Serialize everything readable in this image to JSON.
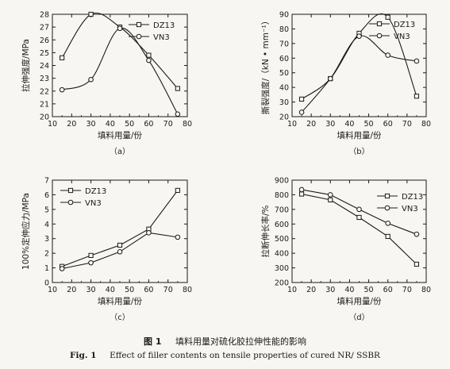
{
  "figure": {
    "caption_cn_label": "图 1",
    "caption_cn": "填料用量对硫化胶拉伸性能的影响",
    "caption_en_label": "Fig. 1",
    "caption_en": "Effect of filler contents on tensile properties of cured NR/ SSBR"
  },
  "chart_data": [
    {
      "type": "line",
      "panel_label": "（a）",
      "xlabel": "填料用量/份",
      "ylabel": "拉伸强度/MPa",
      "xlim": [
        10,
        80
      ],
      "ylim": [
        20,
        28
      ],
      "xticks": [
        10,
        20,
        30,
        40,
        50,
        60,
        70,
        80
      ],
      "yticks": [
        20,
        21,
        22,
        23,
        24,
        25,
        26,
        27,
        28
      ],
      "legend_position": "top-right",
      "grid": false,
      "series": [
        {
          "name": "DZ13",
          "marker": "square",
          "x": [
            15,
            30,
            45,
            60,
            75
          ],
          "y": [
            24.6,
            28.0,
            27.0,
            24.8,
            22.2
          ]
        },
        {
          "name": "VN3",
          "marker": "circle",
          "x": [
            15,
            30,
            45,
            60,
            75
          ],
          "y": [
            22.1,
            22.9,
            26.9,
            24.4,
            20.2
          ]
        }
      ]
    },
    {
      "type": "line",
      "panel_label": "（b）",
      "xlabel": "填料用量/份",
      "ylabel": "撕裂强度/（kN • mm⁻¹）",
      "xlim": [
        10,
        80
      ],
      "ylim": [
        20,
        90
      ],
      "xticks": [
        10,
        20,
        30,
        40,
        50,
        60,
        70,
        80
      ],
      "yticks": [
        20,
        30,
        40,
        50,
        60,
        70,
        80,
        90
      ],
      "legend_position": "top-right",
      "grid": false,
      "series": [
        {
          "name": "DZ13",
          "marker": "square",
          "x": [
            15,
            30,
            45,
            60,
            75
          ],
          "y": [
            32,
            46,
            77,
            88,
            34
          ]
        },
        {
          "name": "VN3",
          "marker": "circle",
          "x": [
            15,
            30,
            45,
            60,
            75
          ],
          "y": [
            23,
            46,
            75,
            62,
            58
          ]
        }
      ]
    },
    {
      "type": "line",
      "panel_label": "（c）",
      "xlabel": "填料用量/份",
      "ylabel": "100%定伸应力/MPa",
      "xlim": [
        10,
        80
      ],
      "ylim": [
        0,
        7
      ],
      "xticks": [
        10,
        20,
        30,
        40,
        50,
        60,
        70,
        80
      ],
      "yticks": [
        0,
        1,
        2,
        3,
        4,
        5,
        6,
        7
      ],
      "legend_position": "top-left",
      "grid": false,
      "series": [
        {
          "name": "DZ13",
          "marker": "square",
          "x": [
            15,
            30,
            45,
            60,
            75
          ],
          "y": [
            1.1,
            1.85,
            2.55,
            3.65,
            6.3
          ]
        },
        {
          "name": "VN3",
          "marker": "circle",
          "x": [
            15,
            30,
            45,
            60,
            75
          ],
          "y": [
            0.95,
            1.35,
            2.1,
            3.4,
            3.1
          ]
        }
      ]
    },
    {
      "type": "line",
      "panel_label": "（d）",
      "xlabel": "填料用量/份",
      "ylabel": "拉断伸长率/%",
      "xlim": [
        10,
        80
      ],
      "ylim": [
        200,
        900
      ],
      "xticks": [
        10,
        20,
        30,
        40,
        50,
        60,
        70,
        80
      ],
      "yticks": [
        200,
        300,
        400,
        500,
        600,
        700,
        800,
        900
      ],
      "legend_position": "top-right",
      "grid": false,
      "series": [
        {
          "name": "DZ13",
          "marker": "square",
          "x": [
            15,
            30,
            45,
            60,
            75
          ],
          "y": [
            805,
            765,
            645,
            515,
            325
          ]
        },
        {
          "name": "VN3",
          "marker": "circle",
          "x": [
            15,
            30,
            45,
            60,
            75
          ],
          "y": [
            835,
            800,
            700,
            605,
            530
          ]
        }
      ]
    }
  ]
}
